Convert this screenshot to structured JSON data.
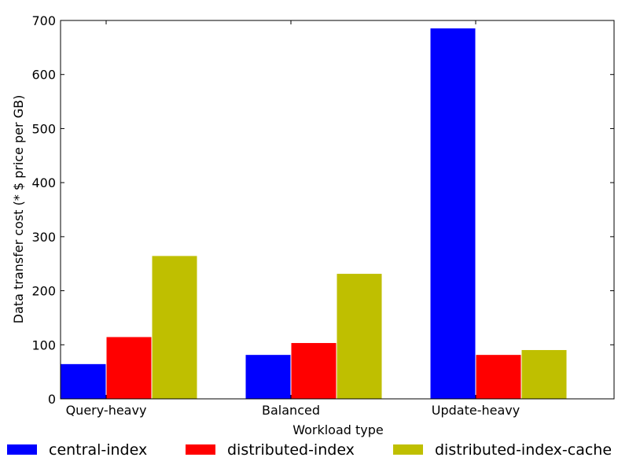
{
  "chart_data": {
    "type": "bar",
    "title": "",
    "xlabel": "Workload type",
    "ylabel": "Data transfer cost (* $ price per GB)",
    "categories": [
      "Query-heavy",
      "Balanced",
      "Update-heavy"
    ],
    "ylim": [
      0,
      700
    ],
    "yticks": [
      0,
      100,
      200,
      300,
      400,
      500,
      600,
      700
    ],
    "grid": false,
    "legend_position": "bottom",
    "series": [
      {
        "name": "central-index",
        "color": "#0000ff",
        "values": [
          65,
          82,
          686
        ]
      },
      {
        "name": "distributed-index",
        "color": "#ff0000",
        "values": [
          115,
          104,
          82
        ]
      },
      {
        "name": "distributed-index-cache",
        "color": "#bfbf00",
        "values": [
          265,
          232,
          91
        ]
      }
    ]
  }
}
